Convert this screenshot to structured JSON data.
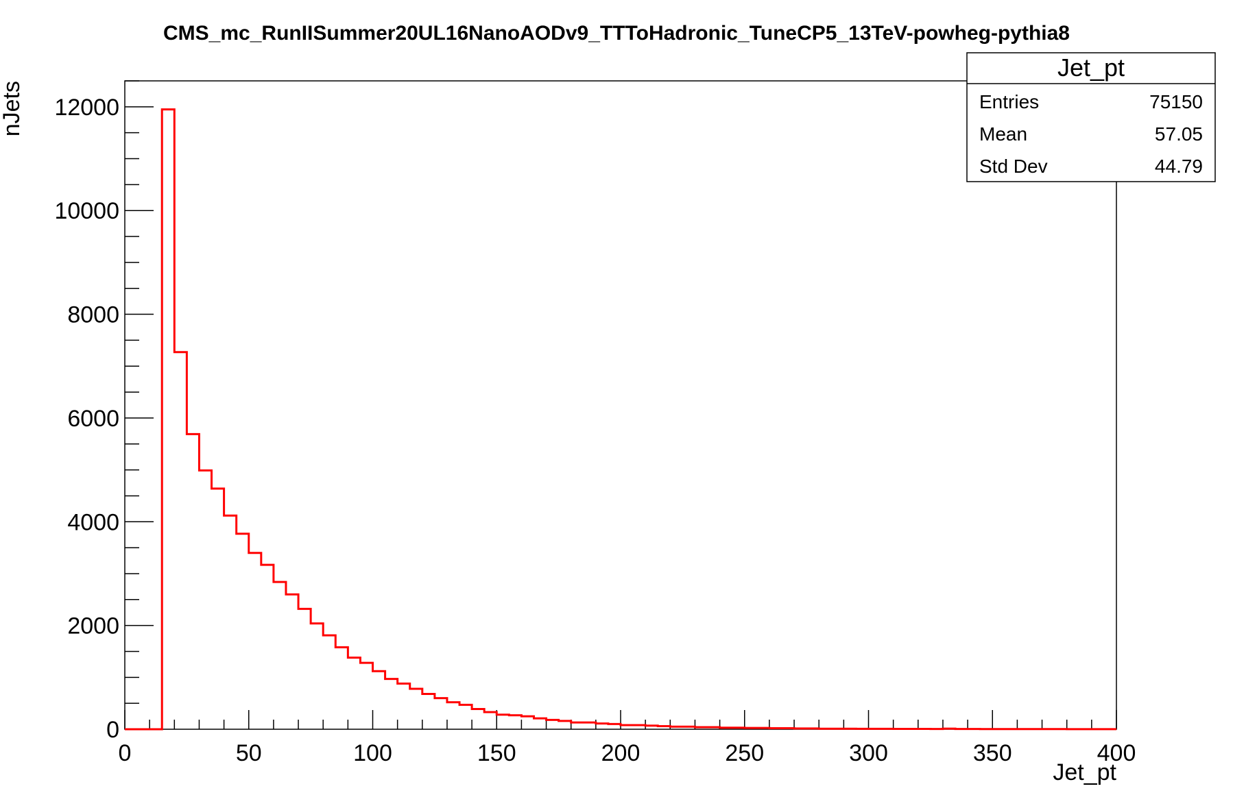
{
  "chart_data": {
    "type": "histogram",
    "title": "CMS_mc_RunIISummer20UL16NanoAODv9_TTToHadronic_TuneCP5_13TeV-powheg-pythia8",
    "xlabel": "Jet_pt",
    "ylabel": "nJets",
    "xlim": [
      0,
      400
    ],
    "ylim": [
      0,
      12500
    ],
    "bin_width": 5,
    "x_ticks": [
      "0",
      "50",
      "100",
      "150",
      "200",
      "250",
      "300",
      "350",
      "400"
    ],
    "y_ticks": [
      "0",
      "2000",
      "4000",
      "6000",
      "8000",
      "10000",
      "12000"
    ],
    "line_color": "#ff0000",
    "grid": false,
    "legend": "none",
    "bin_edges_start": [
      0,
      5,
      10,
      15,
      20,
      25,
      30,
      35,
      40,
      45,
      50,
      55,
      60,
      65,
      70,
      75,
      80,
      85,
      90,
      95,
      100,
      105,
      110,
      115,
      120,
      125,
      130,
      135,
      140,
      145,
      150,
      155,
      160,
      165,
      170,
      175,
      180,
      185,
      190,
      195,
      200,
      205,
      210,
      215,
      220,
      225,
      230,
      235,
      240,
      245,
      250,
      255,
      260,
      265,
      270,
      275,
      280,
      285,
      290,
      295,
      300,
      305,
      310,
      315,
      320,
      325,
      330,
      335,
      340,
      345,
      350,
      355,
      360,
      365,
      370,
      375,
      380,
      385,
      390,
      395
    ],
    "values": [
      0,
      0,
      0,
      11950,
      7270,
      5690,
      4990,
      4640,
      4120,
      3770,
      3400,
      3170,
      2840,
      2600,
      2320,
      2040,
      1810,
      1580,
      1380,
      1280,
      1120,
      970,
      880,
      780,
      680,
      600,
      520,
      470,
      390,
      330,
      280,
      270,
      250,
      210,
      180,
      160,
      130,
      130,
      110,
      100,
      80,
      80,
      70,
      60,
      50,
      50,
      40,
      40,
      30,
      30,
      25,
      25,
      20,
      20,
      15,
      15,
      10,
      10,
      10,
      8,
      8,
      8,
      6,
      6,
      6,
      5,
      12,
      5,
      5,
      4,
      4,
      4,
      3,
      3,
      3,
      3,
      2,
      2,
      2,
      2
    ]
  },
  "stats_box": {
    "title": "Jet_pt",
    "rows": [
      {
        "label": "Entries",
        "value": "75150"
      },
      {
        "label": "Mean",
        "value": "57.05"
      },
      {
        "label": "Std Dev",
        "value": "44.79"
      }
    ]
  }
}
